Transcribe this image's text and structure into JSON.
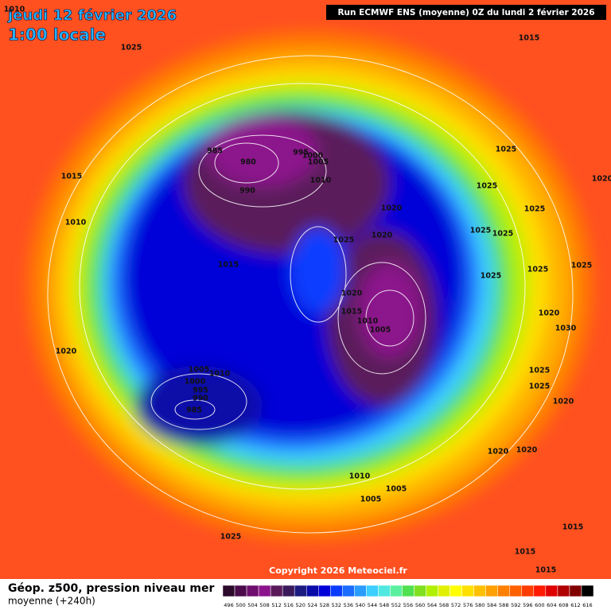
{
  "header": {
    "date": "jeudi 12 février 2026",
    "time": "1:00 locale",
    "run": "Run ECMWF ENS (moyenne) 0Z du lundi 2 février 2026"
  },
  "isobar_labels": [
    1010,
    1025,
    1015,
    985,
    980,
    990,
    995,
    1000,
    1005,
    1010,
    1015,
    1010,
    1020,
    1020,
    1025,
    1015,
    1025,
    1025,
    1025,
    1025,
    1025,
    1025,
    1025,
    1025,
    1020,
    1020,
    1015,
    1010,
    1005,
    1020,
    1030,
    1020,
    1005,
    1010,
    1000,
    995,
    990,
    985,
    1025,
    1025,
    1020,
    1020,
    1020,
    1010,
    1005,
    1005,
    1025,
    1015,
    1015,
    1015
  ],
  "copyright": "Copyright 2026 Meteociel.fr",
  "footer": {
    "title": "Géop. z500, pression niveau mer",
    "subtitle": "moyenne  (+240h)"
  },
  "scale": {
    "labels": [
      496,
      500,
      504,
      508,
      512,
      516,
      520,
      524,
      528,
      532,
      536,
      540,
      544,
      548,
      552,
      556,
      560,
      564,
      568,
      572,
      576,
      580,
      584,
      588,
      592,
      596,
      600,
      604,
      608,
      612,
      616
    ],
    "colors": [
      "#2b0a2b",
      "#4b0b4b",
      "#6e0e6e",
      "#8c138c",
      "#5a1a5a",
      "#3a1a5a",
      "#1a1a80",
      "#0a0aa8",
      "#0000d8",
      "#0a3cff",
      "#1a6cff",
      "#2a9cff",
      "#3ccfff",
      "#50e8e0",
      "#5af0a0",
      "#50e050",
      "#80e020",
      "#b0f000",
      "#e0f000",
      "#ffff00",
      "#ffe000",
      "#ffc000",
      "#ffa000",
      "#ff8000",
      "#ff6000",
      "#ff3c00",
      "#ff1a00",
      "#e00000",
      "#b00000",
      "#800000",
      "#000000"
    ]
  }
}
